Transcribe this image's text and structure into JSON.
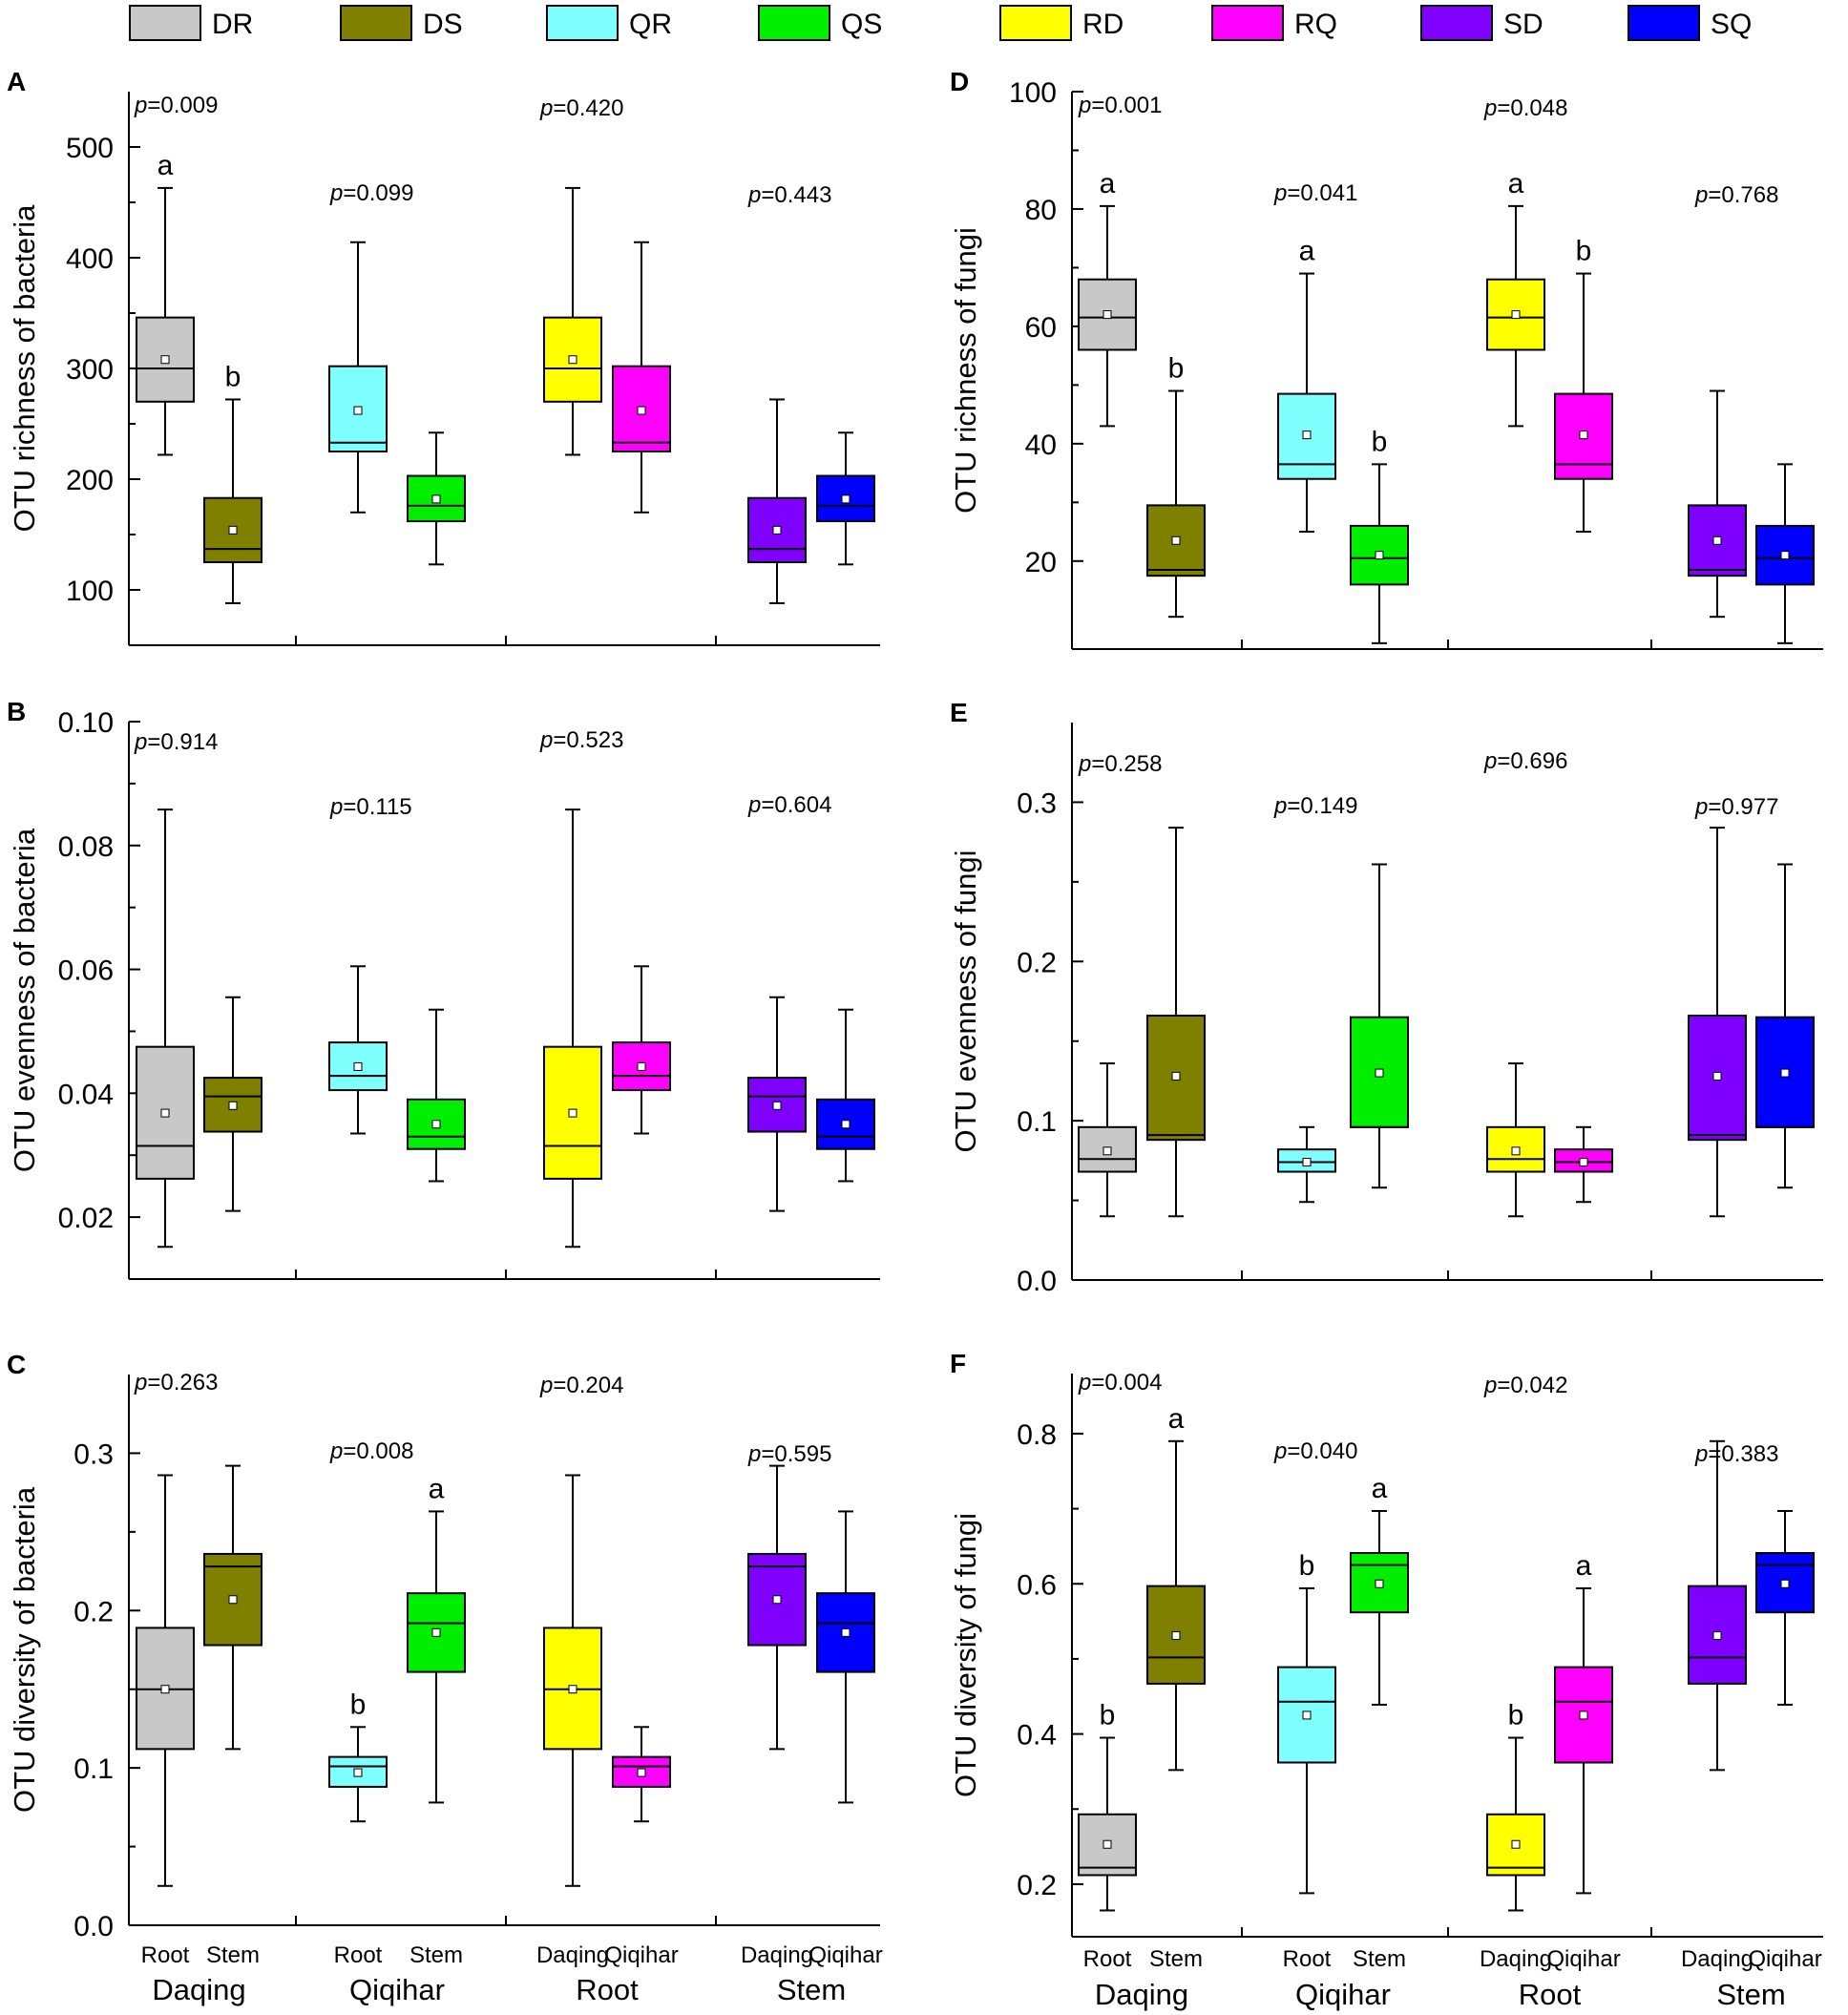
{
  "legend": [
    {
      "code": "DR",
      "color": "#c8c8c8"
    },
    {
      "code": "DS",
      "color": "#808000"
    },
    {
      "code": "QR",
      "color": "#80ffff"
    },
    {
      "code": "QS",
      "color": "#00ee00"
    },
    {
      "code": "RD",
      "color": "#ffff00"
    },
    {
      "code": "RQ",
      "color": "#ff00ff"
    },
    {
      "code": "SD",
      "color": "#8000ff"
    },
    {
      "code": "SQ",
      "color": "#0000ff"
    }
  ],
  "x_ticks": [
    "Root",
    "Stem",
    "Root",
    "Stem",
    "Daqing",
    "Qiqihar",
    "Daqing",
    "Qiqihar"
  ],
  "x_groups": [
    "Daqing",
    "Qiqihar",
    "Root",
    "Stem"
  ],
  "chart_data": [
    {
      "type": "box",
      "panel": "A",
      "ylabel": "OTU richness of bacteria",
      "ylim": [
        50,
        550
      ],
      "yticks": [
        "100",
        "200",
        "300",
        "400",
        "500"
      ],
      "p_values": [
        {
          "label": "p",
          "value": "=0.009"
        },
        {
          "label": "p",
          "value": "=0.099"
        },
        {
          "label": "p",
          "value": "=0.420"
        },
        {
          "label": "p",
          "value": "=0.443"
        }
      ],
      "boxes": [
        {
          "name": "DR",
          "whisker_low": 222,
          "q1": 270,
          "median": 300,
          "q3": 346,
          "whisker_high": 463,
          "mean": 308,
          "letter": "a"
        },
        {
          "name": "DS",
          "whisker_low": 88,
          "q1": 125,
          "median": 137,
          "q3": 183,
          "whisker_high": 272,
          "mean": 154,
          "letter": "b"
        },
        {
          "name": "QR",
          "whisker_low": 170,
          "q1": 225,
          "median": 233,
          "q3": 302,
          "whisker_high": 414,
          "mean": 262,
          "letter": ""
        },
        {
          "name": "QS",
          "whisker_low": 123,
          "q1": 162,
          "median": 176,
          "q3": 203,
          "whisker_high": 242,
          "mean": 182,
          "letter": ""
        },
        {
          "name": "RD",
          "whisker_low": 222,
          "q1": 270,
          "median": 300,
          "q3": 346,
          "whisker_high": 463,
          "mean": 308,
          "letter": ""
        },
        {
          "name": "RQ",
          "whisker_low": 170,
          "q1": 225,
          "median": 233,
          "q3": 302,
          "whisker_high": 414,
          "mean": 262,
          "letter": ""
        },
        {
          "name": "SD",
          "whisker_low": 88,
          "q1": 125,
          "median": 137,
          "q3": 183,
          "whisker_high": 272,
          "mean": 154,
          "letter": ""
        },
        {
          "name": "SQ",
          "whisker_low": 123,
          "q1": 162,
          "median": 176,
          "q3": 203,
          "whisker_high": 242,
          "mean": 182,
          "letter": ""
        }
      ]
    },
    {
      "type": "box",
      "panel": "B",
      "ylabel": "OTU evenness of bacteria",
      "ylim": [
        0.01,
        0.1
      ],
      "yticks": [
        "0.02",
        "0.04",
        "0.06",
        "0.08",
        "0.10"
      ],
      "p_values": [
        {
          "label": "p",
          "value": "=0.914"
        },
        {
          "label": "p",
          "value": "=0.115"
        },
        {
          "label": "p",
          "value": "=0.523"
        },
        {
          "label": "p",
          "value": "=0.604"
        }
      ],
      "boxes": [
        {
          "name": "DR",
          "whisker_low": 0.0152,
          "q1": 0.0262,
          "median": 0.0315,
          "q3": 0.0475,
          "whisker_high": 0.0858,
          "mean": 0.0368,
          "letter": ""
        },
        {
          "name": "DS",
          "whisker_low": 0.021,
          "q1": 0.0338,
          "median": 0.0395,
          "q3": 0.0425,
          "whisker_high": 0.0555,
          "mean": 0.038,
          "letter": ""
        },
        {
          "name": "QR",
          "whisker_low": 0.0335,
          "q1": 0.0405,
          "median": 0.0428,
          "q3": 0.0482,
          "whisker_high": 0.0605,
          "mean": 0.0443,
          "letter": ""
        },
        {
          "name": "QS",
          "whisker_low": 0.0258,
          "q1": 0.031,
          "median": 0.033,
          "q3": 0.039,
          "whisker_high": 0.0535,
          "mean": 0.035,
          "letter": ""
        },
        {
          "name": "RD",
          "whisker_low": 0.0152,
          "q1": 0.0262,
          "median": 0.0315,
          "q3": 0.0475,
          "whisker_high": 0.0858,
          "mean": 0.0368,
          "letter": ""
        },
        {
          "name": "RQ",
          "whisker_low": 0.0335,
          "q1": 0.0405,
          "median": 0.0428,
          "q3": 0.0482,
          "whisker_high": 0.0605,
          "mean": 0.0443,
          "letter": ""
        },
        {
          "name": "SD",
          "whisker_low": 0.021,
          "q1": 0.0338,
          "median": 0.0395,
          "q3": 0.0425,
          "whisker_high": 0.0555,
          "mean": 0.038,
          "letter": ""
        },
        {
          "name": "SQ",
          "whisker_low": 0.0258,
          "q1": 0.031,
          "median": 0.033,
          "q3": 0.039,
          "whisker_high": 0.0535,
          "mean": 0.035,
          "letter": ""
        }
      ]
    },
    {
      "type": "box",
      "panel": "C",
      "ylabel": "OTU diversity of bacteria",
      "ylim": [
        0,
        0.35
      ],
      "yticks": [
        "0.0",
        "0.1",
        "0.2",
        "0.3"
      ],
      "p_values": [
        {
          "label": "p",
          "value": "=0.263"
        },
        {
          "label": "p",
          "value": "=0.008"
        },
        {
          "label": "p",
          "value": "=0.204"
        },
        {
          "label": "p",
          "value": "=0.595"
        }
      ],
      "boxes": [
        {
          "name": "DR",
          "whisker_low": 0.025,
          "q1": 0.112,
          "median": 0.15,
          "q3": 0.189,
          "whisker_high": 0.286,
          "mean": 0.15,
          "letter": ""
        },
        {
          "name": "DS",
          "whisker_low": 0.112,
          "q1": 0.178,
          "median": 0.228,
          "q3": 0.236,
          "whisker_high": 0.292,
          "mean": 0.207,
          "letter": ""
        },
        {
          "name": "QR",
          "whisker_low": 0.066,
          "q1": 0.088,
          "median": 0.101,
          "q3": 0.107,
          "whisker_high": 0.126,
          "mean": 0.097,
          "letter": "b"
        },
        {
          "name": "QS",
          "whisker_low": 0.078,
          "q1": 0.161,
          "median": 0.192,
          "q3": 0.211,
          "whisker_high": 0.263,
          "mean": 0.186,
          "letter": "a"
        },
        {
          "name": "RD",
          "whisker_low": 0.025,
          "q1": 0.112,
          "median": 0.15,
          "q3": 0.189,
          "whisker_high": 0.286,
          "mean": 0.15,
          "letter": ""
        },
        {
          "name": "RQ",
          "whisker_low": 0.066,
          "q1": 0.088,
          "median": 0.101,
          "q3": 0.107,
          "whisker_high": 0.126,
          "mean": 0.097,
          "letter": ""
        },
        {
          "name": "SD",
          "whisker_low": 0.112,
          "q1": 0.178,
          "median": 0.228,
          "q3": 0.236,
          "whisker_high": 0.292,
          "mean": 0.207,
          "letter": ""
        },
        {
          "name": "SQ",
          "whisker_low": 0.078,
          "q1": 0.161,
          "median": 0.192,
          "q3": 0.211,
          "whisker_high": 0.263,
          "mean": 0.186,
          "letter": ""
        }
      ]
    },
    {
      "type": "box",
      "panel": "D",
      "ylabel": "OTU richness of fungi",
      "ylim": [
        5,
        100
      ],
      "yticks": [
        "20",
        "40",
        "60",
        "80",
        "100"
      ],
      "p_values": [
        {
          "label": "p",
          "value": "=0.001"
        },
        {
          "label": "p",
          "value": "=0.041"
        },
        {
          "label": "p",
          "value": "=0.048"
        },
        {
          "label": "p",
          "value": "=0.768"
        }
      ],
      "boxes": [
        {
          "name": "DR",
          "whisker_low": 43,
          "q1": 56,
          "median": 61.5,
          "q3": 68,
          "whisker_high": 80.5,
          "mean": 62,
          "letter": "a"
        },
        {
          "name": "DS",
          "whisker_low": 10.5,
          "q1": 17.5,
          "median": 18.5,
          "q3": 29.5,
          "whisker_high": 49,
          "mean": 23.5,
          "letter": "b"
        },
        {
          "name": "QR",
          "whisker_low": 25,
          "q1": 34,
          "median": 36.5,
          "q3": 48.5,
          "whisker_high": 69,
          "mean": 41.5,
          "letter": "a"
        },
        {
          "name": "QS",
          "whisker_low": 6,
          "q1": 16,
          "median": 20.5,
          "q3": 26,
          "whisker_high": 36.5,
          "mean": 21,
          "letter": "b"
        },
        {
          "name": "RD",
          "whisker_low": 43,
          "q1": 56,
          "median": 61.5,
          "q3": 68,
          "whisker_high": 80.5,
          "mean": 62,
          "letter": "a"
        },
        {
          "name": "RQ",
          "whisker_low": 25,
          "q1": 34,
          "median": 36.5,
          "q3": 48.5,
          "whisker_high": 69,
          "mean": 41.5,
          "letter": "b"
        },
        {
          "name": "SD",
          "whisker_low": 10.5,
          "q1": 17.5,
          "median": 18.5,
          "q3": 29.5,
          "whisker_high": 49,
          "mean": 23.5,
          "letter": ""
        },
        {
          "name": "SQ",
          "whisker_low": 6,
          "q1": 16,
          "median": 20.5,
          "q3": 26,
          "whisker_high": 36.5,
          "mean": 21,
          "letter": ""
        }
      ]
    },
    {
      "type": "box",
      "panel": "E",
      "ylabel": "OTU evenness of fungi",
      "ylim": [
        0,
        0.35
      ],
      "yticks": [
        "0.0",
        "0.1",
        "0.2",
        "0.3"
      ],
      "p_values": [
        {
          "label": "p",
          "value": "=0.258"
        },
        {
          "label": "p",
          "value": "=0.149"
        },
        {
          "label": "p",
          "value": "=0.696"
        },
        {
          "label": "p",
          "value": "=0.977"
        }
      ],
      "boxes": [
        {
          "name": "DR",
          "whisker_low": 0.04,
          "q1": 0.068,
          "median": 0.076,
          "q3": 0.096,
          "whisker_high": 0.136,
          "mean": 0.081,
          "letter": ""
        },
        {
          "name": "DS",
          "whisker_low": 0.04,
          "q1": 0.088,
          "median": 0.091,
          "q3": 0.166,
          "whisker_high": 0.284,
          "mean": 0.128,
          "letter": ""
        },
        {
          "name": "QR",
          "whisker_low": 0.049,
          "q1": 0.068,
          "median": 0.074,
          "q3": 0.082,
          "whisker_high": 0.096,
          "mean": 0.074,
          "letter": ""
        },
        {
          "name": "QS",
          "whisker_low": 0.058,
          "q1": 0.096,
          "median": 0.096,
          "q3": 0.165,
          "whisker_high": 0.261,
          "mean": 0.13,
          "letter": ""
        },
        {
          "name": "RD",
          "whisker_low": 0.04,
          "q1": 0.068,
          "median": 0.076,
          "q3": 0.096,
          "whisker_high": 0.136,
          "mean": 0.081,
          "letter": ""
        },
        {
          "name": "RQ",
          "whisker_low": 0.049,
          "q1": 0.068,
          "median": 0.074,
          "q3": 0.082,
          "whisker_high": 0.096,
          "mean": 0.074,
          "letter": ""
        },
        {
          "name": "SD",
          "whisker_low": 0.04,
          "q1": 0.088,
          "median": 0.091,
          "q3": 0.166,
          "whisker_high": 0.284,
          "mean": 0.128,
          "letter": ""
        },
        {
          "name": "SQ",
          "whisker_low": 0.058,
          "q1": 0.096,
          "median": 0.096,
          "q3": 0.165,
          "whisker_high": 0.261,
          "mean": 0.13,
          "letter": ""
        }
      ]
    },
    {
      "type": "box",
      "panel": "F",
      "ylabel": "OTU diversity of fungi",
      "ylim": [
        0.13,
        0.88
      ],
      "yticks": [
        "0.2",
        "0.4",
        "0.6",
        "0.8"
      ],
      "p_values": [
        {
          "label": "p",
          "value": "=0.004"
        },
        {
          "label": "p",
          "value": "=0.040"
        },
        {
          "label": "p",
          "value": "=0.042"
        },
        {
          "label": "p",
          "value": "=0.383"
        }
      ],
      "boxes": [
        {
          "name": "DR",
          "whisker_low": 0.165,
          "q1": 0.212,
          "median": 0.222,
          "q3": 0.293,
          "whisker_high": 0.395,
          "mean": 0.253,
          "letter": "b"
        },
        {
          "name": "DS",
          "whisker_low": 0.352,
          "q1": 0.467,
          "median": 0.502,
          "q3": 0.597,
          "whisker_high": 0.79,
          "mean": 0.531,
          "letter": "a"
        },
        {
          "name": "QR",
          "whisker_low": 0.188,
          "q1": 0.362,
          "median": 0.443,
          "q3": 0.489,
          "whisker_high": 0.594,
          "mean": 0.425,
          "letter": "b"
        },
        {
          "name": "QS",
          "whisker_low": 0.439,
          "q1": 0.562,
          "median": 0.625,
          "q3": 0.641,
          "whisker_high": 0.697,
          "mean": 0.6,
          "letter": "a"
        },
        {
          "name": "RD",
          "whisker_low": 0.165,
          "q1": 0.212,
          "median": 0.222,
          "q3": 0.293,
          "whisker_high": 0.395,
          "mean": 0.253,
          "letter": "b"
        },
        {
          "name": "RQ",
          "whisker_low": 0.188,
          "q1": 0.362,
          "median": 0.443,
          "q3": 0.489,
          "whisker_high": 0.594,
          "mean": 0.425,
          "letter": "a"
        },
        {
          "name": "SD",
          "whisker_low": 0.352,
          "q1": 0.467,
          "median": 0.502,
          "q3": 0.597,
          "whisker_high": 0.79,
          "mean": 0.531,
          "letter": ""
        },
        {
          "name": "SQ",
          "whisker_low": 0.439,
          "q1": 0.562,
          "median": 0.625,
          "q3": 0.641,
          "whisker_high": 0.697,
          "mean": 0.6,
          "letter": ""
        }
      ]
    }
  ]
}
